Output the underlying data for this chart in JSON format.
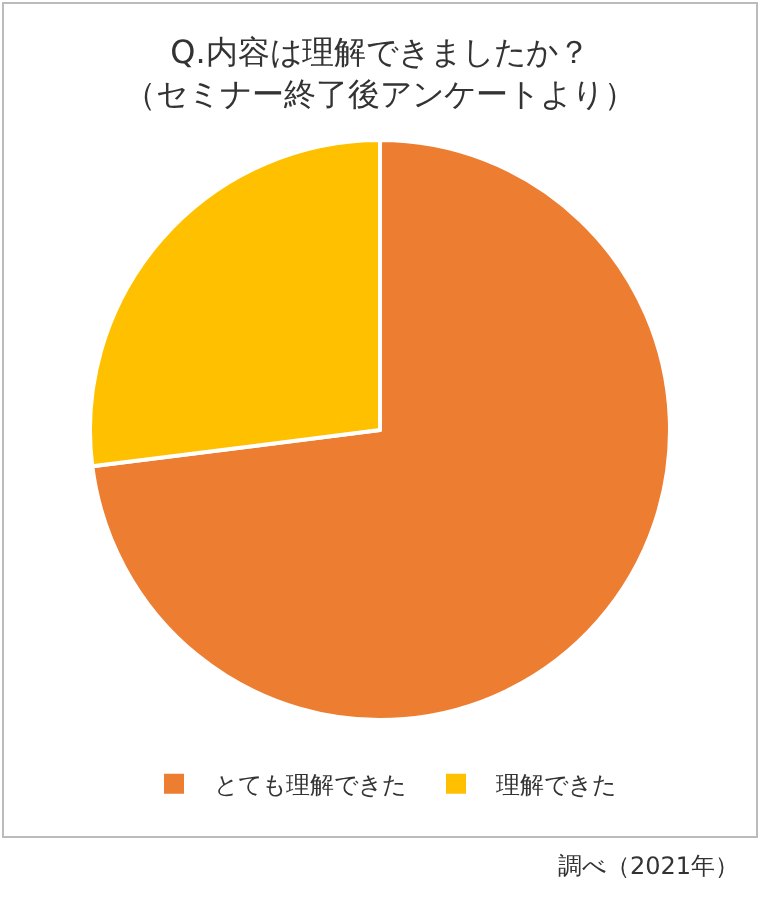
{
  "chart_data": {
    "type": "pie",
    "title": "Q.内容は理解できましたか？",
    "subtitle": "（セミナー終了後アンケートより）",
    "categories": [
      "とても理解できた",
      "理解できた"
    ],
    "values": [
      73,
      27
    ],
    "colors": [
      "#ed7d31",
      "#ffc000"
    ],
    "legend": "bottom",
    "annotations": [
      "調べ（2021年）"
    ]
  }
}
